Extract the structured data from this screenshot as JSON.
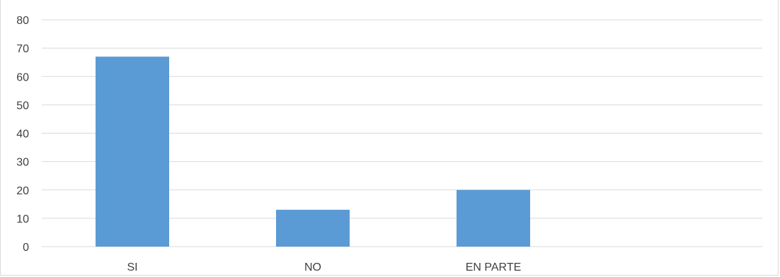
{
  "chart_data": {
    "type": "bar",
    "categories": [
      "SI",
      "NO",
      "EN PARTE"
    ],
    "values": [
      67,
      13,
      20
    ],
    "ylim": [
      0,
      80
    ],
    "yticks": [
      0,
      10,
      20,
      30,
      40,
      50,
      60,
      70,
      80
    ],
    "grid": true,
    "legend": "none",
    "colors": {
      "bar": "#5B9BD5",
      "grid": "#d9d9d9",
      "text": "#404040"
    }
  }
}
